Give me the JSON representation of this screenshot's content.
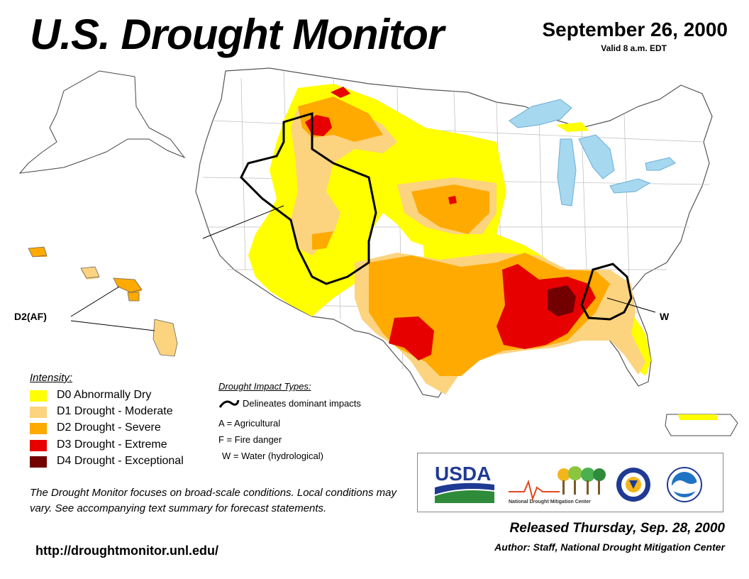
{
  "header": {
    "title": "U.S. Drought Monitor",
    "date": "September 26, 2000",
    "valid": "Valid 8 a.m. EDT"
  },
  "colors": {
    "water": "#a6d8f0",
    "D0": "#ffff00",
    "D1": "#fcd37f",
    "D2": "#ffaa00",
    "D3": "#e60000",
    "D4": "#730000",
    "boundary": "#000000"
  },
  "legend": {
    "title": "Intensity:",
    "items": [
      {
        "code": "D0",
        "label": "D0 Abnormally Dry",
        "color": "#ffff00"
      },
      {
        "code": "D1",
        "label": "D1 Drought - Moderate",
        "color": "#fcd37f"
      },
      {
        "code": "D2",
        "label": "D2 Drought - Severe",
        "color": "#ffaa00"
      },
      {
        "code": "D3",
        "label": "D3 Drought - Extreme",
        "color": "#e60000"
      },
      {
        "code": "D4",
        "label": "D4 Drought - Exceptional",
        "color": "#730000"
      }
    ]
  },
  "impacts": {
    "title": "Drought Impact Types:",
    "line_label": "Delineates dominant impacts",
    "types": [
      "A = Agricultural",
      "F = Fire danger",
      "W = Water (hydrological)"
    ]
  },
  "map_labels": {
    "af": "D2(AF)",
    "w": "W"
  },
  "disclaimer": "The Drought Monitor focuses on broad-scale conditions. Local conditions may vary. See accompanying text summary for forecast statements.",
  "url": "http://droughtmonitor.unl.edu/",
  "logos": {
    "usda": "USDA",
    "ndmc": "National Drought Mitigation Center"
  },
  "footer": {
    "released": "Released Thursday, Sep. 28, 2000",
    "author": "Author: Staff, National Drought Mitigation Center"
  }
}
